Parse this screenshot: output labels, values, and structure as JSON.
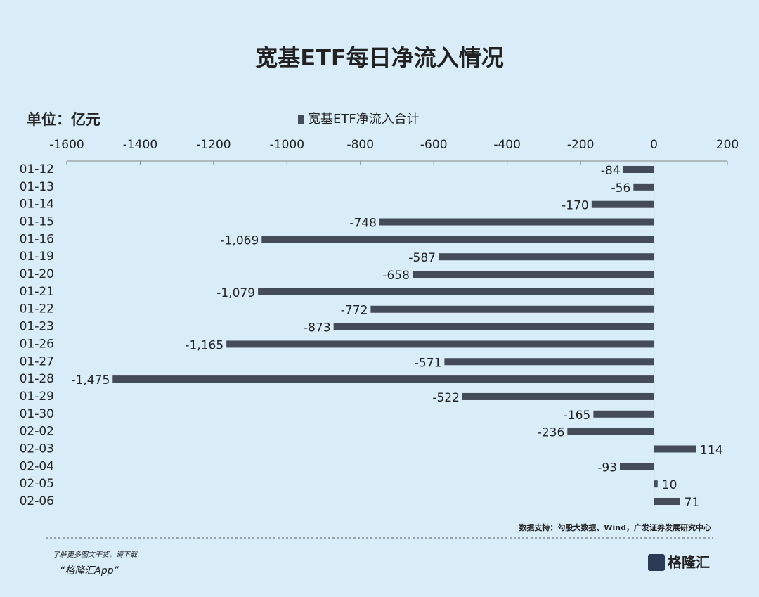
{
  "chart_data": {
    "type": "barh",
    "title": "宽基ETF每日净流入情况",
    "unit_label": "单位：亿元",
    "source": "数据支持：勾股大数据、Wind，广发证券发展研究中心",
    "categories": [
      "01-12",
      "01-13",
      "01-14",
      "01-15",
      "01-16",
      "01-19",
      "01-20",
      "01-21",
      "01-22",
      "01-23",
      "01-26",
      "01-27",
      "01-28",
      "01-29",
      "01-30",
      "02-02",
      "02-03",
      "02-04",
      "02-05",
      "02-06"
    ],
    "series": [
      {
        "name": "宽基ETF净流入合计",
        "color": "#454c59",
        "values": [
          -84,
          -56,
          -170,
          -748,
          -1069,
          -587,
          -658,
          -1079,
          -772,
          -873,
          -1165,
          -571,
          -1475,
          -522,
          -165,
          -236,
          114,
          -93,
          10,
          71
        ],
        "value_labels": [
          "-84",
          "-56",
          "-170",
          "-748",
          "-1,069",
          "-587",
          "-658",
          "-1,079",
          "-772",
          "-873",
          "-1,165",
          "-571",
          "-1,475",
          "-522",
          "-165",
          "-236",
          "114",
          "-93",
          "10",
          "71"
        ]
      }
    ],
    "xlim": [
      -1600,
      200
    ],
    "xticks": [
      -1600,
      -1400,
      -1200,
      -1000,
      -800,
      -600,
      -400,
      -200,
      0,
      200
    ]
  },
  "footer": {
    "line1": "了解更多图文干货，请下载",
    "line2": "“格隆汇App”",
    "logo": "格隆汇"
  }
}
